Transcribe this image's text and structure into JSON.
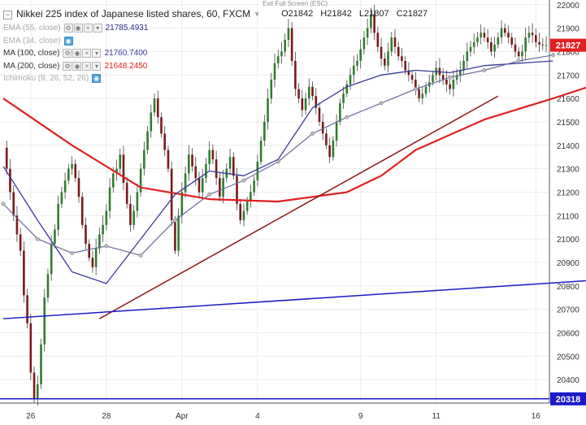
{
  "header": {
    "title": "Nikkei 225 index of Japanese listed shares, 60, FXCM",
    "exit_fullscreen": "Exit Full Screen (ESC)",
    "ohlc": {
      "open": "O21842",
      "high": "H21842",
      "low": "L21807",
      "close": "C21827"
    }
  },
  "indicators": [
    {
      "label": "EMA (55, close)",
      "value": "21785.4931",
      "active": false,
      "color": "#2b2b8c"
    },
    {
      "label": "EMA (34, close)",
      "value": "",
      "active": false,
      "color": "#aaaaaa"
    },
    {
      "label": "MA (100, close)",
      "value": "21760.7400",
      "active": true,
      "color": "#3a3a9a"
    },
    {
      "label": "MA (200, close)",
      "value": "21648.2450",
      "active": true,
      "color": "#e02020"
    },
    {
      "label": "Ichimoku (9, 26, 52, 26)",
      "value": "",
      "active": false,
      "color": "#aaaaaa"
    }
  ],
  "price_labels": {
    "current": "21827",
    "support": "20318"
  },
  "chart_data": {
    "type": "candlestick",
    "ylim": [
      20300,
      22020
    ],
    "y_ticks": [
      20400,
      20500,
      20600,
      20700,
      20800,
      20900,
      21000,
      21100,
      21200,
      21300,
      21400,
      21500,
      21600,
      21700,
      21800,
      21900,
      22000
    ],
    "x_labels": [
      "26",
      "28",
      "Apr",
      "4",
      "9",
      "11",
      "16"
    ],
    "x_label_index": [
      8,
      30,
      52,
      74,
      104,
      126,
      155
    ],
    "current_price": 21827,
    "support_level": 20318,
    "closes": [
      21390,
      21300,
      21200,
      21100,
      21020,
      20950,
      20760,
      20640,
      20430,
      20320,
      20380,
      20550,
      20750,
      20850,
      20980,
      21040,
      21150,
      21200,
      21250,
      21300,
      21320,
      21260,
      21180,
      21060,
      20980,
      20920,
      20880,
      20960,
      21020,
      21060,
      21120,
      21220,
      21280,
      21300,
      21360,
      21240,
      21150,
      21060,
      21120,
      21200,
      21300,
      21380,
      21460,
      21540,
      21600,
      21520,
      21450,
      21380,
      21300,
      21080,
      20950,
      21100,
      21200,
      21280,
      21360,
      21310,
      21260,
      21200,
      21260,
      21320,
      21380,
      21340,
      21260,
      21180,
      21260,
      21300,
      21350,
      21270,
      21150,
      21080,
      21120,
      21160,
      21200,
      21250,
      21330,
      21420,
      21500,
      21600,
      21680,
      21750,
      21780,
      21800,
      21850,
      21900,
      21760,
      21640,
      21600,
      21550,
      21600,
      21650,
      21610,
      21560,
      21500,
      21450,
      21400,
      21350,
      21420,
      21500,
      21580,
      21620,
      21660,
      21700,
      21740,
      21760,
      21810,
      21860,
      21900,
      21960,
      21880,
      21820,
      21770,
      21740,
      21800,
      21860,
      21820,
      21780,
      21760,
      21720,
      21700,
      21680,
      21640,
      21600,
      21620,
      21650,
      21670,
      21700,
      21730,
      21700,
      21680,
      21660,
      21640,
      21680,
      21700,
      21720,
      21760,
      21800,
      21820,
      21840,
      21860,
      21880,
      21860,
      21840,
      21800,
      21830,
      21860,
      21900,
      21880,
      21860,
      21830,
      21800,
      21780,
      21800,
      21860,
      21880,
      21870,
      21840,
      21830,
      21827,
      21827
    ],
    "ma200_points": [
      [
        0,
        21600
      ],
      [
        20,
        21400
      ],
      [
        40,
        21220
      ],
      [
        60,
        21170
      ],
      [
        80,
        21160
      ],
      [
        100,
        21200
      ],
      [
        110,
        21270
      ],
      [
        120,
        21380
      ],
      [
        140,
        21510
      ],
      [
        160,
        21600
      ],
      [
        170,
        21648
      ]
    ],
    "ma100_points": [
      [
        0,
        21310
      ],
      [
        10,
        21080
      ],
      [
        20,
        20860
      ],
      [
        30,
        20810
      ],
      [
        40,
        21000
      ],
      [
        50,
        21190
      ],
      [
        60,
        21290
      ],
      [
        70,
        21270
      ],
      [
        80,
        21340
      ],
      [
        90,
        21560
      ],
      [
        100,
        21650
      ],
      [
        110,
        21700
      ],
      [
        120,
        21720
      ],
      [
        130,
        21710
      ],
      [
        140,
        21740
      ],
      [
        150,
        21750
      ],
      [
        160,
        21760
      ]
    ],
    "ema34_points": [
      [
        0,
        21150
      ],
      [
        10,
        21000
      ],
      [
        20,
        20940
      ],
      [
        30,
        20970
      ],
      [
        40,
        20930
      ],
      [
        50,
        21080
      ],
      [
        60,
        21190
      ],
      [
        70,
        21250
      ],
      [
        80,
        21330
      ],
      [
        90,
        21450
      ],
      [
        100,
        21520
      ],
      [
        110,
        21580
      ],
      [
        120,
        21640
      ],
      [
        130,
        21690
      ],
      [
        140,
        21720
      ],
      [
        150,
        21760
      ],
      [
        160,
        21785
      ]
    ],
    "trendlines": [
      {
        "color": "#8b1a1a",
        "p1": [
          28,
          20660
        ],
        "p2": [
          144,
          21610
        ]
      },
      {
        "color": "#1a1ac8",
        "p1": [
          0,
          20660
        ],
        "p2": [
          178,
          20830
        ]
      }
    ]
  }
}
